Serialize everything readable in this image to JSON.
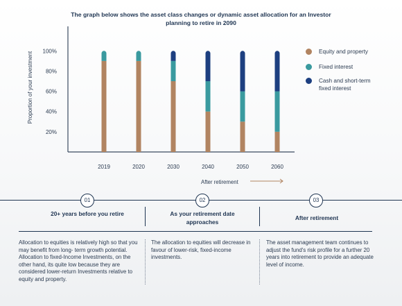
{
  "title": "The graph below shows the asset class changes or dynamic asset allocation for an Investor planning to retire in 2090",
  "colors": {
    "equity": "#b18461",
    "fixed": "#3a9a9f",
    "cash": "#1d3f80",
    "axis": "#3a4a60",
    "dark": "#1f3552"
  },
  "chart_data": {
    "type": "bar",
    "stacked": true,
    "categories": [
      "2019",
      "2020",
      "2030",
      "2040",
      "2050",
      "2060"
    ],
    "series": [
      {
        "name": "Equity and property",
        "values": [
          90,
          90,
          70,
          40,
          30,
          20
        ]
      },
      {
        "name": "Fixed interest",
        "values": [
          10,
          10,
          20,
          30,
          30,
          40
        ]
      },
      {
        "name": "Cash and short-term fixed interest",
        "values": [
          0,
          0,
          10,
          30,
          40,
          40
        ]
      }
    ],
    "ylabel": "Proportion of your investment",
    "yticks": [
      "20%",
      "40%",
      "60%",
      "80%",
      "100%"
    ],
    "ylim": [
      0,
      110
    ],
    "grid": false,
    "legend_position": "right"
  },
  "legend": [
    {
      "label": "Equity and property",
      "color": "#b18461"
    },
    {
      "label": "Fixed interest",
      "color": "#3a9a9f"
    },
    {
      "label": "Cash and short-term fixed interest",
      "color": "#1d3f80"
    }
  ],
  "after_retirement_label": "After retirement",
  "steps": [
    {
      "number": "01",
      "title": "20+ years before you retire",
      "text": "Allocation to equities is relatively high so that you may benefit from long- term growth potential. Allocation to fixed-Income Investments, on the other hand, its quite low because they are considered lower-return Investments relative to equity and property."
    },
    {
      "number": "02",
      "title": "As your retirement date approaches",
      "text": "The allocation to equities will decrease in favour of lower-risk, fixed-income investments."
    },
    {
      "number": "03",
      "title": "After retirement",
      "text": "The asset management team continues to adjust the fund's risk profile for a further 20 years into retirement to provide an adequate level of income."
    }
  ]
}
